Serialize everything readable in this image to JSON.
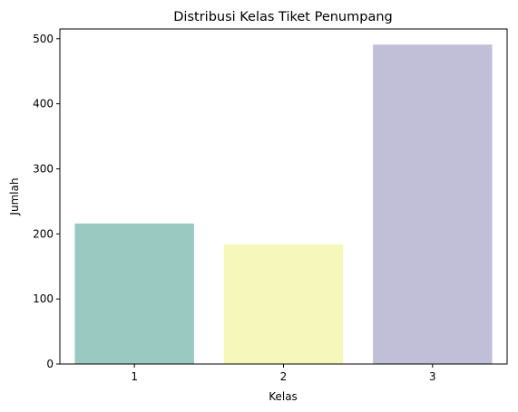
{
  "chart_data": {
    "type": "bar",
    "title": "Distribusi Kelas Tiket Penumpang",
    "xlabel": "Kelas",
    "ylabel": "Jumlah",
    "categories": [
      "1",
      "2",
      "3"
    ],
    "values": [
      216,
      184,
      491
    ],
    "ylim": [
      0,
      515
    ],
    "yticks": [
      0,
      100,
      200,
      300,
      400,
      500
    ],
    "colors": [
      "#99c9c1",
      "#f6f7bb",
      "#c1bfd8"
    ],
    "grid": false,
    "legend": "none"
  }
}
